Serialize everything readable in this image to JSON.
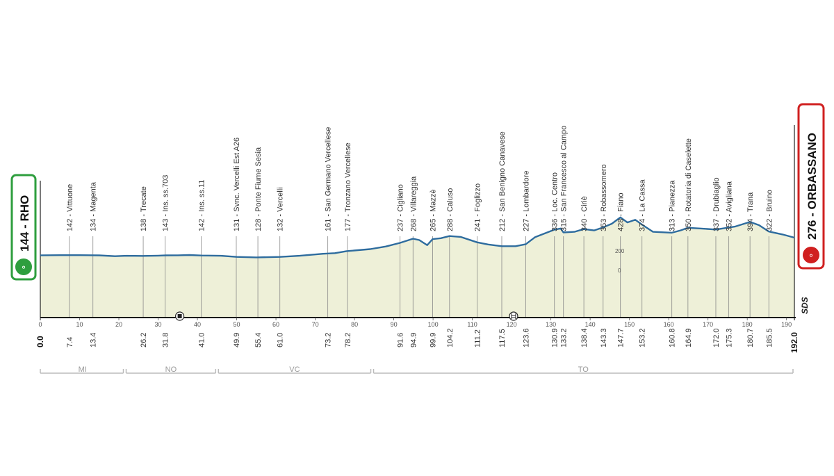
{
  "chart_data": {
    "type": "area",
    "start": {
      "label": "144 - RHO",
      "km": "0.0"
    },
    "finish": {
      "label": "276 - ORBASSANO",
      "km": "192.0"
    },
    "brand": "SDS",
    "xlim": [
      0,
      192
    ],
    "x_ticks": [
      0,
      10,
      20,
      30,
      40,
      50,
      60,
      70,
      80,
      90,
      100,
      110,
      120,
      130,
      140,
      150,
      160,
      170,
      180,
      190
    ],
    "altitude_scale_labels": [
      "200",
      "0"
    ],
    "profile": [
      [
        0,
        144
      ],
      [
        5,
        145
      ],
      [
        10,
        145
      ],
      [
        15,
        143
      ],
      [
        19,
        137
      ],
      [
        22,
        140
      ],
      [
        26,
        139
      ],
      [
        30,
        141
      ],
      [
        32,
        143
      ],
      [
        35,
        144
      ],
      [
        38,
        146
      ],
      [
        41,
        142
      ],
      [
        46,
        140
      ],
      [
        50,
        132
      ],
      [
        55,
        128
      ],
      [
        61,
        132
      ],
      [
        66,
        140
      ],
      [
        72,
        155
      ],
      [
        75,
        160
      ],
      [
        78,
        175
      ],
      [
        84,
        190
      ],
      [
        88,
        210
      ],
      [
        91.6,
        237
      ],
      [
        94.9,
        268
      ],
      [
        96.5,
        258
      ],
      [
        98.5,
        220
      ],
      [
        99.9,
        265
      ],
      [
        102,
        272
      ],
      [
        104.2,
        288
      ],
      [
        107,
        282
      ],
      [
        111.2,
        241
      ],
      [
        114,
        225
      ],
      [
        117.5,
        212
      ],
      [
        121,
        212
      ],
      [
        123.6,
        227
      ],
      [
        126,
        280
      ],
      [
        130.9,
        336
      ],
      [
        132.5,
        345
      ],
      [
        133.2,
        315
      ],
      [
        136,
        320
      ],
      [
        138.4,
        340
      ],
      [
        141,
        330
      ],
      [
        143.3,
        353
      ],
      [
        145.5,
        380
      ],
      [
        147.7,
        428
      ],
      [
        149.5,
        390
      ],
      [
        151.5,
        410
      ],
      [
        153.2,
        374
      ],
      [
        156,
        320
      ],
      [
        160.8,
        313
      ],
      [
        163,
        330
      ],
      [
        164.9,
        350
      ],
      [
        168,
        345
      ],
      [
        172,
        337
      ],
      [
        175.3,
        352
      ],
      [
        177,
        360
      ],
      [
        180.7,
        394
      ],
      [
        183,
        370
      ],
      [
        185.5,
        322
      ],
      [
        189,
        300
      ],
      [
        192,
        276
      ]
    ],
    "waypoints": [
      {
        "km": 7.4,
        "km_label": "7.4",
        "label": "142 - Vittuone"
      },
      {
        "km": 13.4,
        "km_label": "13.4",
        "label": "134 - Magenta"
      },
      {
        "km": 26.2,
        "km_label": "26.2",
        "label": "138 - Trecate"
      },
      {
        "km": 31.8,
        "km_label": "31.8",
        "label": "143 - Ins. ss.703"
      },
      {
        "km": 41.0,
        "km_label": "41.0",
        "label": "142 - Ins. ss.11"
      },
      {
        "km": 49.9,
        "km_label": "49.9",
        "label": "131 - Svnc. Vercelli Est A26"
      },
      {
        "km": 55.4,
        "km_label": "55.4",
        "label": "128 - Ponte Fiume Sesia"
      },
      {
        "km": 61.0,
        "km_label": "61.0",
        "label": "132 - Vercelli"
      },
      {
        "km": 73.2,
        "km_label": "73.2",
        "label": "161 - San Germano Vercellese"
      },
      {
        "km": 78.2,
        "km_label": "78.2",
        "label": "177 - Tronzano Vercellese"
      },
      {
        "km": 91.6,
        "km_label": "91.6",
        "label": "237 - Cigliano"
      },
      {
        "km": 94.9,
        "km_label": "94.9",
        "label": "268 - Villareggia"
      },
      {
        "km": 99.9,
        "km_label": "99.9",
        "label": "265 - Mazzè"
      },
      {
        "km": 104.2,
        "km_label": "104.2",
        "label": "288 - Caluso"
      },
      {
        "km": 111.2,
        "km_label": "111.2",
        "label": "241 - Foglizzo"
      },
      {
        "km": 117.5,
        "km_label": "117.5",
        "label": "212 - San Benigno Canavese"
      },
      {
        "km": 123.6,
        "km_label": "123.6",
        "label": "227 - Lombardore"
      },
      {
        "km": 130.9,
        "km_label": "130.9",
        "label": "336 - Loc. Centro"
      },
      {
        "km": 133.2,
        "km_label": "133.2",
        "label": "315 - San Francesco al Campo"
      },
      {
        "km": 138.4,
        "km_label": "138.4",
        "label": "340 - Ciriè"
      },
      {
        "km": 143.3,
        "km_label": "143.3",
        "label": "353 - Robassomero"
      },
      {
        "km": 147.7,
        "km_label": "147.7",
        "label": "428 - Fiano"
      },
      {
        "km": 153.2,
        "km_label": "153.2",
        "label": "374 - La Cassa"
      },
      {
        "km": 160.8,
        "km_label": "160.8",
        "label": "313 - Pianezza"
      },
      {
        "km": 164.9,
        "km_label": "164.9",
        "label": "350 - Rotatoria di Caselette"
      },
      {
        "km": 172.0,
        "km_label": "172.0",
        "label": "337 - Drubiaglio"
      },
      {
        "km": 175.3,
        "km_label": "175.3",
        "label": "352 - Avigliana"
      },
      {
        "km": 180.7,
        "km_label": "180.7",
        "label": "394 - Trana"
      },
      {
        "km": 185.5,
        "km_label": "185.5",
        "label": "322 - Bruino"
      }
    ],
    "regions": [
      {
        "label": "MI",
        "from": 0,
        "to": 21.5
      },
      {
        "label": "NO",
        "from": 21.5,
        "to": 45
      },
      {
        "label": "VC",
        "from": 45,
        "to": 84.5
      },
      {
        "label": "TO",
        "from": 84.5,
        "to": 192
      }
    ],
    "markers": [
      {
        "km": 35.5,
        "type": "tunnel"
      },
      {
        "km": 120.5,
        "type": "level-crossing"
      }
    ],
    "colors": {
      "area_fill": "#eef0d8",
      "profile_line": "#2e6c9e",
      "start_badge": "#2e9e3e",
      "finish_badge": "#d02020",
      "vertical_line": "#888888"
    }
  }
}
